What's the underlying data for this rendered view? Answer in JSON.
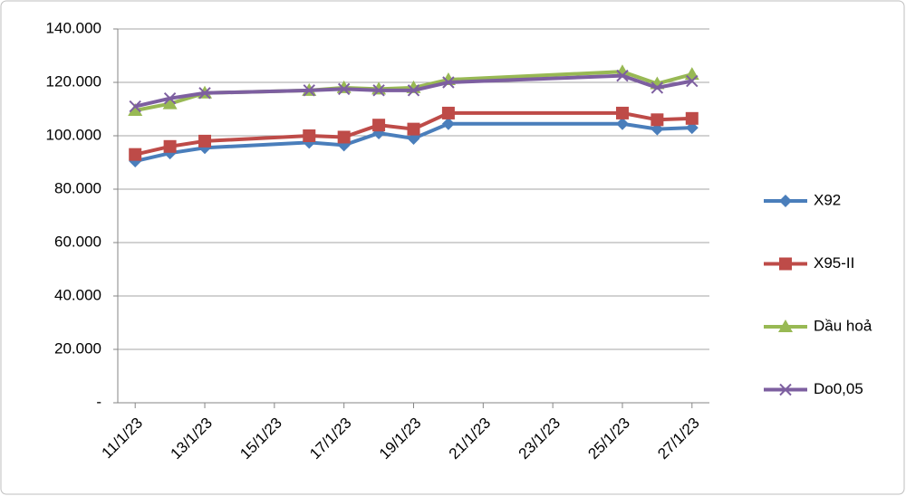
{
  "chart_data": {
    "type": "line",
    "x": [
      "11/1/23",
      "12/1/23",
      "13/1/23",
      "16/1/23",
      "17/1/23",
      "18/1/23",
      "19/1/23",
      "20/1/23",
      "25/1/23",
      "26/1/23",
      "27/1/23"
    ],
    "series": [
      {
        "name": "X92",
        "color": "#4a7ebb",
        "marker": "diamond",
        "values": [
          90500,
          93500,
          95500,
          97500,
          96500,
          101000,
          99000,
          104500,
          104500,
          102500,
          103000
        ]
      },
      {
        "name": "X95-II",
        "color": "#be4b48",
        "marker": "square",
        "values": [
          93000,
          96000,
          98000,
          100000,
          99500,
          104000,
          102500,
          108500,
          108500,
          106000,
          106500
        ]
      },
      {
        "name": "Dầu hoả",
        "color": "#98b954",
        "marker": "triangle",
        "values": [
          109500,
          112000,
          116000,
          117000,
          118000,
          117500,
          118000,
          121000,
          124000,
          119500,
          123000
        ]
      },
      {
        "name": "Do0,05",
        "color": "#7d5fa0",
        "marker": "x",
        "values": [
          111000,
          114000,
          116000,
          117000,
          117500,
          117000,
          117000,
          120000,
          122500,
          118000,
          120500
        ]
      }
    ],
    "ylim": [
      0,
      140000
    ],
    "yticks": [
      {
        "value": 0,
        "label": "-"
      },
      {
        "value": 20000,
        "label": "20.000"
      },
      {
        "value": 40000,
        "label": "40.000"
      },
      {
        "value": 60000,
        "label": "60.000"
      },
      {
        "value": 80000,
        "label": "80.000"
      },
      {
        "value": 100000,
        "label": "100.000"
      },
      {
        "value": 120000,
        "label": "120.000"
      },
      {
        "value": 140000,
        "label": "140.000"
      }
    ],
    "xticks": [
      "11/1/23",
      "13/1/23",
      "15/1/23",
      "17/1/23",
      "19/1/23",
      "21/1/23",
      "23/1/23",
      "25/1/23",
      "27/1/23"
    ],
    "grid": true,
    "legend": "right"
  }
}
